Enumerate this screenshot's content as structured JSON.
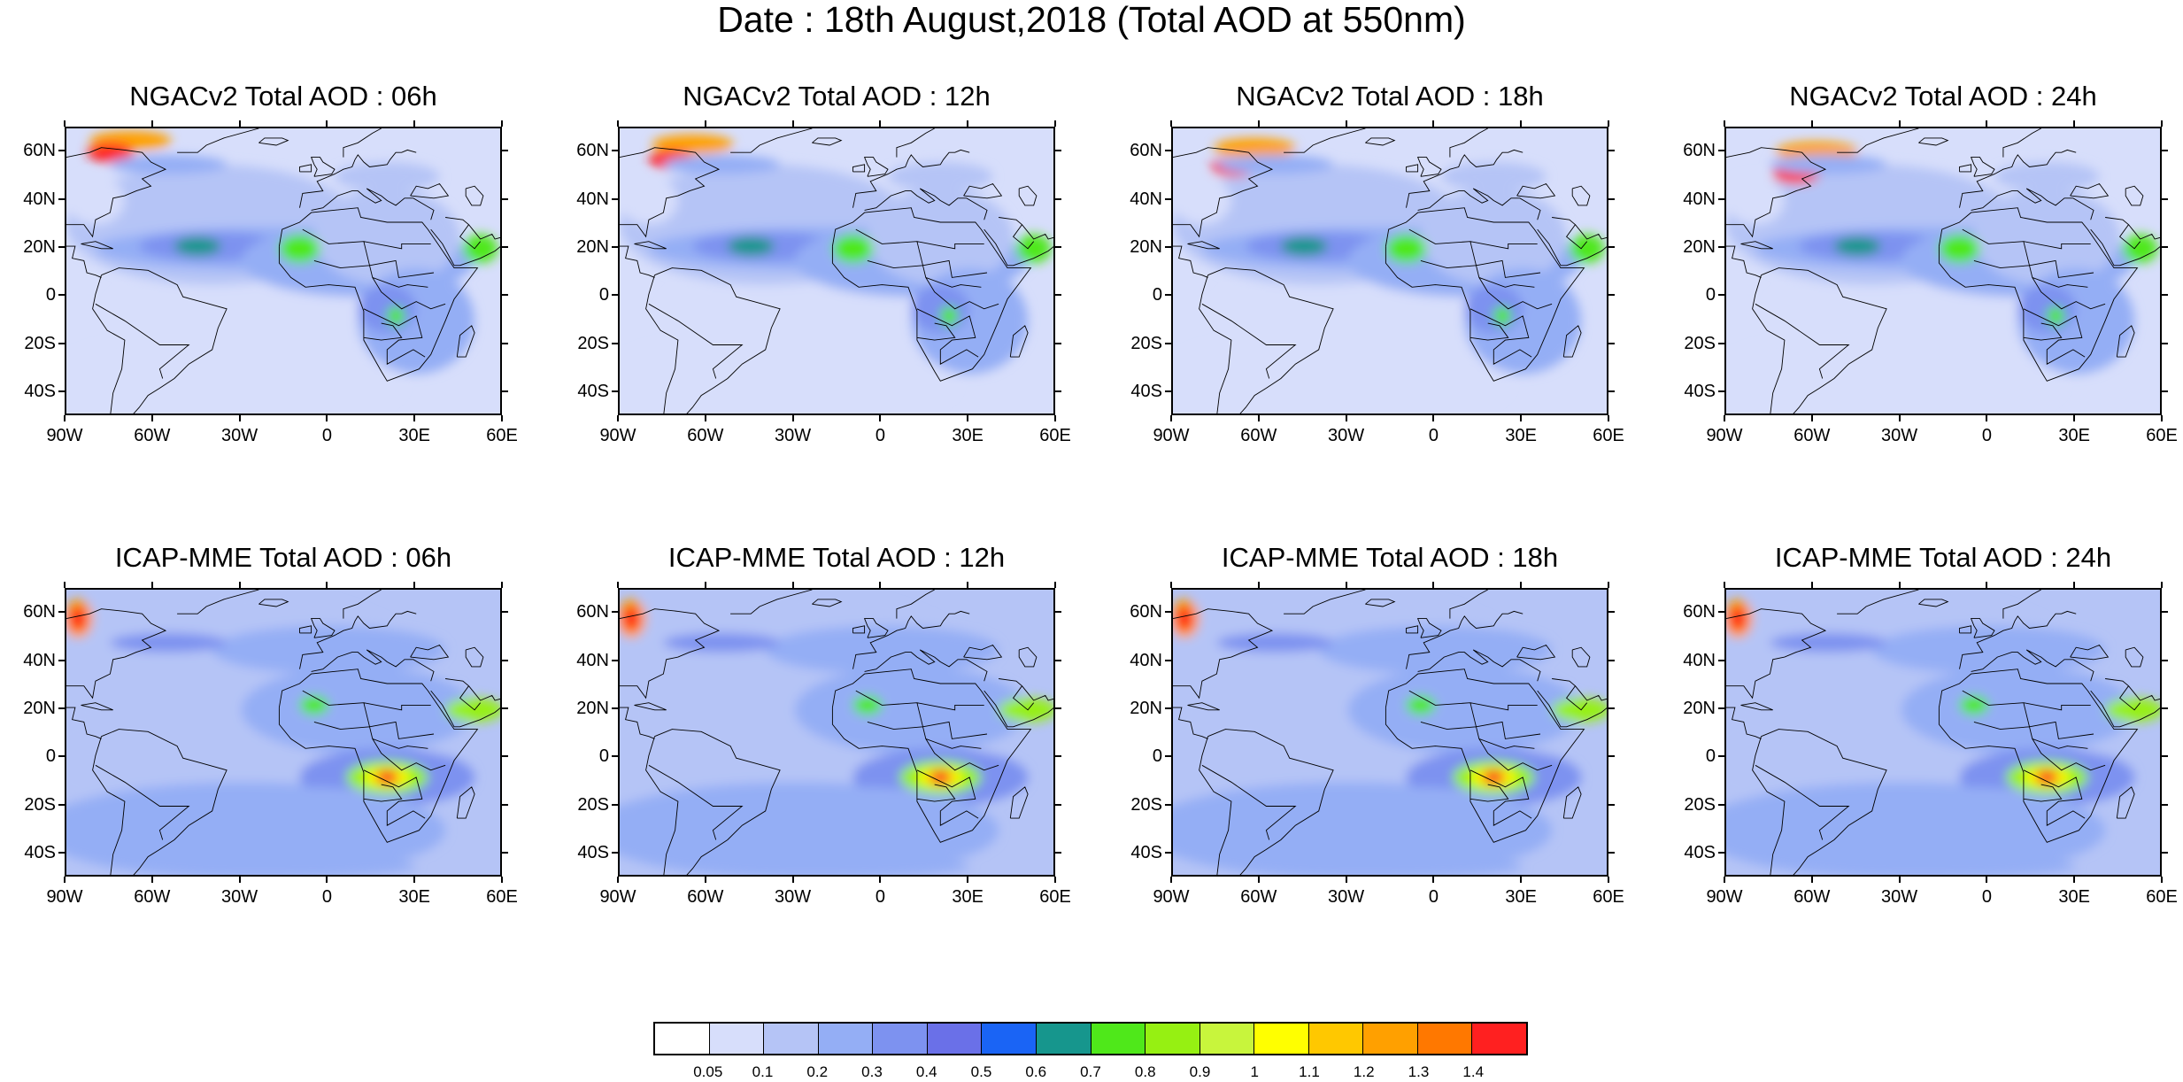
{
  "title": "Date : 18th August,2018 (Total AOD at 550nm)",
  "panels": [
    {
      "title": "NGACv2 Total AOD : 06h",
      "model": "NGACv2",
      "hour": "06h"
    },
    {
      "title": "NGACv2 Total AOD : 12h",
      "model": "NGACv2",
      "hour": "12h"
    },
    {
      "title": "NGACv2 Total AOD : 18h",
      "model": "NGACv2",
      "hour": "18h"
    },
    {
      "title": "NGACv2 Total AOD : 24h",
      "model": "NGACv2",
      "hour": "24h"
    },
    {
      "title": "ICAP-MME Total AOD : 06h",
      "model": "ICAP-MME",
      "hour": "06h"
    },
    {
      "title": "ICAP-MME Total AOD : 12h",
      "model": "ICAP-MME",
      "hour": "12h"
    },
    {
      "title": "ICAP-MME Total AOD : 18h",
      "model": "ICAP-MME",
      "hour": "18h"
    },
    {
      "title": "ICAP-MME Total AOD : 24h",
      "model": "ICAP-MME",
      "hour": "24h"
    }
  ],
  "lat_ticks": [
    {
      "lat": 60,
      "label": "60N"
    },
    {
      "lat": 40,
      "label": "40N"
    },
    {
      "lat": 20,
      "label": "20N"
    },
    {
      "lat": 0,
      "label": "0"
    },
    {
      "lat": -20,
      "label": "20S"
    },
    {
      "lat": -40,
      "label": "40S"
    }
  ],
  "lon_ticks": [
    {
      "lon": -90,
      "label": "90W"
    },
    {
      "lon": -60,
      "label": "60W"
    },
    {
      "lon": -30,
      "label": "30W"
    },
    {
      "lon": 0,
      "label": "0"
    },
    {
      "lon": 30,
      "label": "30E"
    },
    {
      "lon": 60,
      "label": "60E"
    }
  ],
  "map_extent": {
    "lon_min": -90,
    "lon_max": 60,
    "lat_min": -50,
    "lat_max": 70
  },
  "colorbar": {
    "colors": [
      "#ffffff",
      "#d7defb",
      "#b5c4f6",
      "#94aef5",
      "#7d92f0",
      "#6a70e8",
      "#1a64f5",
      "#16968d",
      "#4fe81a",
      "#96f012",
      "#c8f53c",
      "#ffff00",
      "#ffc800",
      "#ffa000",
      "#ff7800",
      "#ff2020"
    ],
    "labels": [
      "0.05",
      "0.1",
      "0.2",
      "0.3",
      "0.4",
      "0.5",
      "0.6",
      "0.7",
      "0.8",
      "0.9",
      "1",
      "1.1",
      "1.2",
      "1.3",
      "1.4"
    ]
  }
}
